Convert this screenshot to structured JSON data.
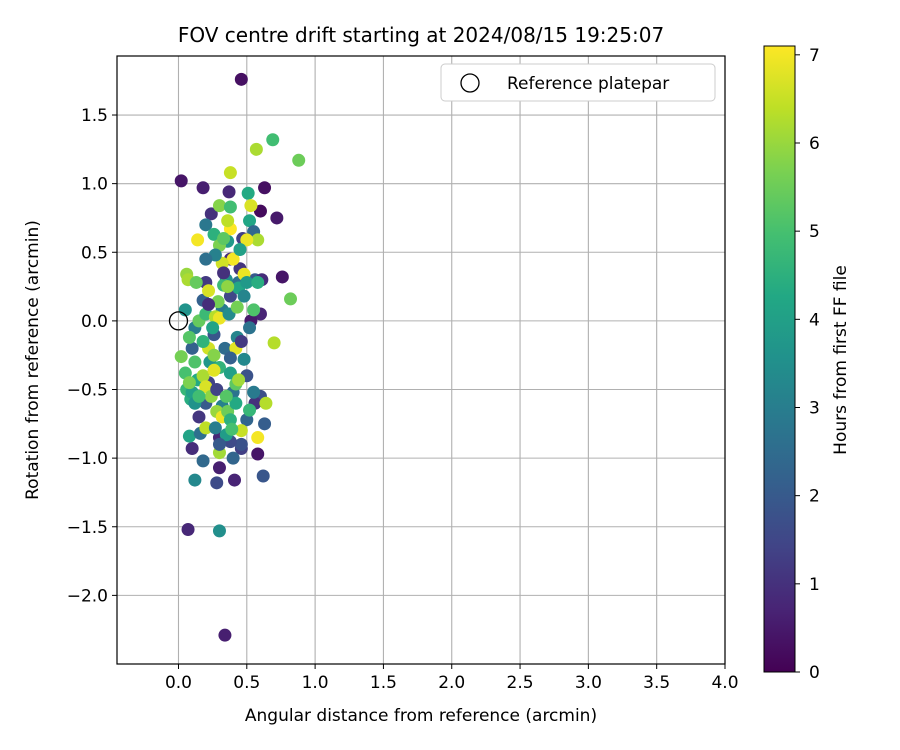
{
  "chart_data": {
    "type": "scatter",
    "title": "FOV centre drift starting at 2024/08/15 19:25:07",
    "xlabel": "Angular distance from reference (arcmin)",
    "ylabel": "Rotation from reference (arcmin)",
    "xlim": [
      -0.45,
      4.0
    ],
    "ylim": [
      -2.5,
      1.93
    ],
    "xticks": [
      "0.0",
      "0.5",
      "1.0",
      "1.5",
      "2.0",
      "2.5",
      "3.0",
      "3.5",
      "4.0"
    ],
    "yticks": [
      "−2.0",
      "−1.5",
      "−1.0",
      "−0.5",
      "0.0",
      "0.5",
      "1.0",
      "1.5"
    ],
    "grid": true,
    "legend_position": "top-right",
    "legend_label": "Reference platepar",
    "reference_point": {
      "x": 0.0,
      "y": 0.0
    },
    "colorbar": {
      "label": "Hours from first FF file",
      "range": [
        0,
        7.1
      ],
      "ticks": [
        "0",
        "1",
        "2",
        "3",
        "4",
        "5",
        "6",
        "7"
      ],
      "colormap": "viridis"
    },
    "points": [
      {
        "x": 0.46,
        "y": 1.76,
        "c": 0.3
      },
      {
        "x": 0.02,
        "y": 1.02,
        "c": 0.4
      },
      {
        "x": 0.18,
        "y": 0.97,
        "c": 0.6
      },
      {
        "x": 0.37,
        "y": 0.94,
        "c": 0.8
      },
      {
        "x": 0.63,
        "y": 0.97,
        "c": 0.3
      },
      {
        "x": 0.6,
        "y": 0.8,
        "c": 0.2
      },
      {
        "x": 0.72,
        "y": 0.75,
        "c": 0.5
      },
      {
        "x": 0.76,
        "y": 0.32,
        "c": 0.4
      },
      {
        "x": 0.6,
        "y": 0.05,
        "c": 0.7
      },
      {
        "x": 0.53,
        "y": 0.0,
        "c": 0.5
      },
      {
        "x": 0.38,
        "y": 0.45,
        "c": 0.9
      },
      {
        "x": 0.24,
        "y": 0.78,
        "c": 1.0
      },
      {
        "x": 0.2,
        "y": 0.28,
        "c": 1.2
      },
      {
        "x": 0.1,
        "y": -0.2,
        "c": 2.2
      },
      {
        "x": 0.22,
        "y": -0.45,
        "c": 1.4
      },
      {
        "x": 0.15,
        "y": -0.7,
        "c": 1.1
      },
      {
        "x": 0.3,
        "y": -0.85,
        "c": 0.8
      },
      {
        "x": 0.1,
        "y": -0.93,
        "c": 0.9
      },
      {
        "x": 0.3,
        "y": -1.07,
        "c": 0.6
      },
      {
        "x": 0.41,
        "y": -1.16,
        "c": 0.7
      },
      {
        "x": 0.28,
        "y": -1.18,
        "c": 1.6
      },
      {
        "x": 0.62,
        "y": -1.13,
        "c": 1.9
      },
      {
        "x": 0.58,
        "y": -0.97,
        "c": 0.4
      },
      {
        "x": 0.46,
        "y": -0.93,
        "c": 1.3
      },
      {
        "x": 0.63,
        "y": -0.75,
        "c": 2.1
      },
      {
        "x": 0.6,
        "y": -0.55,
        "c": 1.7
      },
      {
        "x": 0.56,
        "y": -0.6,
        "c": 1.0
      },
      {
        "x": 0.07,
        "y": -1.52,
        "c": 0.8
      },
      {
        "x": 0.3,
        "y": -1.53,
        "c": 3.5
      },
      {
        "x": 0.34,
        "y": -2.29,
        "c": 0.6
      },
      {
        "x": 0.18,
        "y": -1.02,
        "c": 2.4
      },
      {
        "x": 0.12,
        "y": -1.16,
        "c": 3.3
      },
      {
        "x": 0.08,
        "y": -0.84,
        "c": 4.1
      },
      {
        "x": 0.4,
        "y": -1.0,
        "c": 2.3
      },
      {
        "x": 0.46,
        "y": -0.9,
        "c": 1.8
      },
      {
        "x": 0.2,
        "y": 0.7,
        "c": 2.8
      },
      {
        "x": 0.26,
        "y": 0.63,
        "c": 4.5
      },
      {
        "x": 0.36,
        "y": 0.58,
        "c": 3.8
      },
      {
        "x": 0.52,
        "y": 0.73,
        "c": 4.2
      },
      {
        "x": 0.55,
        "y": 0.65,
        "c": 2.4
      },
      {
        "x": 0.47,
        "y": 0.6,
        "c": 1.3
      },
      {
        "x": 0.45,
        "y": 0.38,
        "c": 1.1
      },
      {
        "x": 0.56,
        "y": 0.3,
        "c": 2.0
      },
      {
        "x": 0.61,
        "y": 0.3,
        "c": 0.9
      },
      {
        "x": 0.35,
        "y": 0.3,
        "c": 3.5
      },
      {
        "x": 0.44,
        "y": 0.28,
        "c": 2.6
      },
      {
        "x": 0.38,
        "y": 0.18,
        "c": 1.5
      },
      {
        "x": 0.32,
        "y": 0.08,
        "c": 2.9
      },
      {
        "x": 0.18,
        "y": 0.15,
        "c": 2.2
      },
      {
        "x": 0.12,
        "y": -0.05,
        "c": 3.0
      },
      {
        "x": 0.05,
        "y": 0.08,
        "c": 3.6
      },
      {
        "x": 0.26,
        "y": -0.1,
        "c": 1.9
      },
      {
        "x": 0.34,
        "y": -0.2,
        "c": 2.5
      },
      {
        "x": 0.43,
        "y": -0.12,
        "c": 3.2
      },
      {
        "x": 0.5,
        "y": -0.4,
        "c": 1.8
      },
      {
        "x": 0.4,
        "y": -0.52,
        "c": 2.7
      },
      {
        "x": 0.32,
        "y": -0.62,
        "c": 3.1
      },
      {
        "x": 0.2,
        "y": -0.6,
        "c": 2.0
      },
      {
        "x": 0.16,
        "y": -0.82,
        "c": 2.6
      },
      {
        "x": 0.38,
        "y": -0.88,
        "c": 1.6
      },
      {
        "x": 0.5,
        "y": -0.72,
        "c": 2.3
      },
      {
        "x": 0.23,
        "y": -0.3,
        "c": 3.7
      },
      {
        "x": 0.14,
        "y": -0.43,
        "c": 4.3
      },
      {
        "x": 0.06,
        "y": -0.5,
        "c": 4.7
      },
      {
        "x": 0.09,
        "y": -0.57,
        "c": 4.4
      },
      {
        "x": 0.05,
        "y": -0.38,
        "c": 5.0
      },
      {
        "x": 0.02,
        "y": -0.26,
        "c": 5.6
      },
      {
        "x": 0.08,
        "y": -0.12,
        "c": 5.2
      },
      {
        "x": 0.15,
        "y": 0.0,
        "c": 5.4
      },
      {
        "x": 0.2,
        "y": 0.05,
        "c": 4.8
      },
      {
        "x": 0.27,
        "y": 0.03,
        "c": 6.3
      },
      {
        "x": 0.3,
        "y": 0.02,
        "c": 6.9
      },
      {
        "x": 0.22,
        "y": -0.2,
        "c": 6.6
      },
      {
        "x": 0.26,
        "y": -0.25,
        "c": 5.8
      },
      {
        "x": 0.3,
        "y": -0.34,
        "c": 4.6
      },
      {
        "x": 0.38,
        "y": -0.38,
        "c": 4.0
      },
      {
        "x": 0.42,
        "y": -0.2,
        "c": 6.8
      },
      {
        "x": 0.42,
        "y": -0.46,
        "c": 5.3
      },
      {
        "x": 0.18,
        "y": -0.4,
        "c": 6.2
      },
      {
        "x": 0.2,
        "y": -0.48,
        "c": 6.7
      },
      {
        "x": 0.24,
        "y": -0.55,
        "c": 5.9
      },
      {
        "x": 0.28,
        "y": -0.66,
        "c": 6.0
      },
      {
        "x": 0.32,
        "y": -0.7,
        "c": 6.9
      },
      {
        "x": 0.36,
        "y": -0.66,
        "c": 5.5
      },
      {
        "x": 0.38,
        "y": -0.72,
        "c": 4.5
      },
      {
        "x": 0.2,
        "y": -0.78,
        "c": 6.4
      },
      {
        "x": 0.3,
        "y": -0.96,
        "c": 6.1
      },
      {
        "x": 0.46,
        "y": -0.8,
        "c": 6.5
      },
      {
        "x": 0.58,
        "y": -0.85,
        "c": 7.0
      },
      {
        "x": 0.64,
        "y": -0.6,
        "c": 6.3
      },
      {
        "x": 0.7,
        "y": -0.16,
        "c": 6.3
      },
      {
        "x": 0.82,
        "y": 0.16,
        "c": 5.5
      },
      {
        "x": 0.55,
        "y": 0.08,
        "c": 5.1
      },
      {
        "x": 0.48,
        "y": 0.34,
        "c": 6.9
      },
      {
        "x": 0.4,
        "y": 0.45,
        "c": 7.0
      },
      {
        "x": 0.32,
        "y": 0.42,
        "c": 6.6
      },
      {
        "x": 0.3,
        "y": 0.55,
        "c": 5.7
      },
      {
        "x": 0.38,
        "y": 0.67,
        "c": 7.1
      },
      {
        "x": 0.36,
        "y": 0.73,
        "c": 6.4
      },
      {
        "x": 0.3,
        "y": 0.84,
        "c": 5.8
      },
      {
        "x": 0.38,
        "y": 0.83,
        "c": 4.9
      },
      {
        "x": 0.51,
        "y": 0.93,
        "c": 4.3
      },
      {
        "x": 0.53,
        "y": 0.84,
        "c": 6.7
      },
      {
        "x": 0.58,
        "y": 0.59,
        "c": 6.2
      },
      {
        "x": 0.5,
        "y": 0.59,
        "c": 6.9
      },
      {
        "x": 0.14,
        "y": 0.59,
        "c": 7.0
      },
      {
        "x": 0.38,
        "y": 1.08,
        "c": 6.5
      },
      {
        "x": 0.57,
        "y": 1.25,
        "c": 6.2
      },
      {
        "x": 0.69,
        "y": 1.32,
        "c": 4.9
      },
      {
        "x": 0.88,
        "y": 1.17,
        "c": 5.5
      },
      {
        "x": 0.06,
        "y": 0.34,
        "c": 6.0
      },
      {
        "x": 0.07,
        "y": 0.3,
        "c": 6.2
      },
      {
        "x": 0.13,
        "y": 0.28,
        "c": 5.4
      },
      {
        "x": 0.22,
        "y": 0.22,
        "c": 6.7
      },
      {
        "x": 0.29,
        "y": 0.14,
        "c": 5.6
      },
      {
        "x": 0.33,
        "y": 0.26,
        "c": 4.8
      },
      {
        "x": 0.44,
        "y": 0.24,
        "c": 4.2
      },
      {
        "x": 0.5,
        "y": 0.28,
        "c": 3.8
      },
      {
        "x": 0.37,
        "y": 0.05,
        "c": 3.4
      },
      {
        "x": 0.25,
        "y": -0.05,
        "c": 4.1
      },
      {
        "x": 0.18,
        "y": -0.15,
        "c": 4.6
      },
      {
        "x": 0.12,
        "y": -0.3,
        "c": 5.1
      },
      {
        "x": 0.1,
        "y": -0.52,
        "c": 4.0
      },
      {
        "x": 0.12,
        "y": -0.6,
        "c": 3.6
      },
      {
        "x": 0.27,
        "y": -0.78,
        "c": 3.0
      },
      {
        "x": 0.35,
        "y": -0.83,
        "c": 3.9
      },
      {
        "x": 0.42,
        "y": -0.6,
        "c": 4.3
      },
      {
        "x": 0.52,
        "y": -0.65,
        "c": 4.7
      },
      {
        "x": 0.55,
        "y": -0.52,
        "c": 2.9
      },
      {
        "x": 0.48,
        "y": -0.28,
        "c": 3.3
      },
      {
        "x": 0.52,
        "y": -0.05,
        "c": 2.7
      },
      {
        "x": 0.58,
        "y": 0.28,
        "c": 4.4
      },
      {
        "x": 0.45,
        "y": 0.52,
        "c": 4.0
      },
      {
        "x": 0.27,
        "y": 0.48,
        "c": 3.1
      },
      {
        "x": 0.2,
        "y": 0.45,
        "c": 2.6
      },
      {
        "x": 0.33,
        "y": 0.6,
        "c": 5.3
      },
      {
        "x": 0.36,
        "y": 0.25,
        "c": 5.9
      },
      {
        "x": 0.38,
        "y": -0.27,
        "c": 2.2
      },
      {
        "x": 0.28,
        "y": -0.5,
        "c": 1.4
      },
      {
        "x": 0.46,
        "y": -0.15,
        "c": 1.2
      },
      {
        "x": 0.33,
        "y": 0.35,
        "c": 1.0
      },
      {
        "x": 0.22,
        "y": 0.12,
        "c": 0.9
      },
      {
        "x": 0.15,
        "y": -0.55,
        "c": 4.9
      },
      {
        "x": 0.08,
        "y": -0.45,
        "c": 5.7
      },
      {
        "x": 0.26,
        "y": -0.36,
        "c": 6.8
      },
      {
        "x": 0.44,
        "y": -0.43,
        "c": 6.1
      },
      {
        "x": 0.35,
        "y": -0.55,
        "c": 5.2
      },
      {
        "x": 0.39,
        "y": -0.79,
        "c": 5.0
      },
      {
        "x": 0.3,
        "y": -0.9,
        "c": 2.0
      },
      {
        "x": 0.43,
        "y": 0.1,
        "c": 5.6
      },
      {
        "x": 0.48,
        "y": 0.18,
        "c": 3.2
      }
    ]
  }
}
